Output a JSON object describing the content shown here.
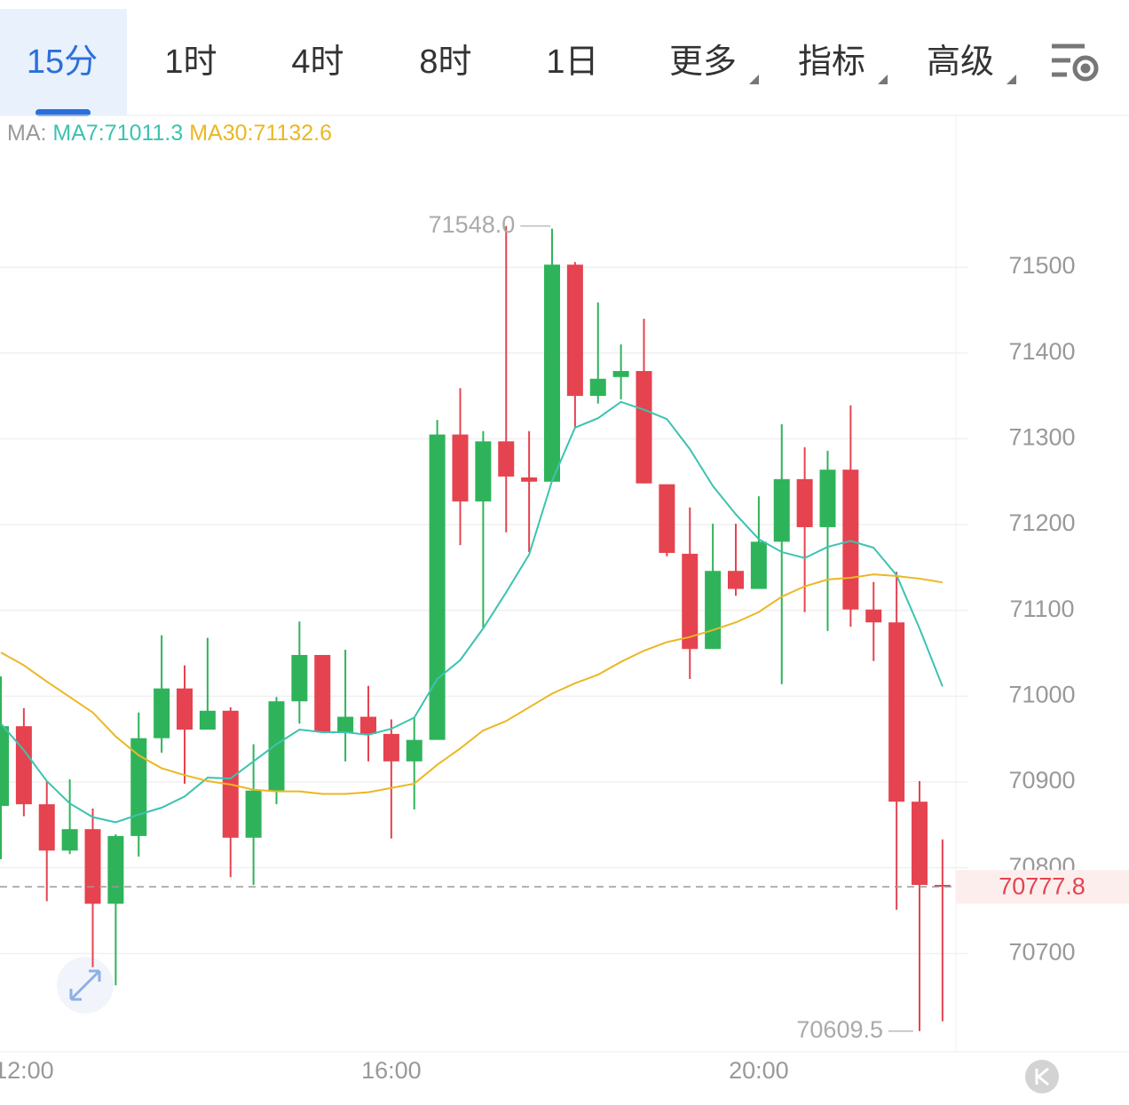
{
  "tabs": [
    "15分",
    "1时",
    "4时",
    "8时",
    "1日",
    "更多",
    "指标",
    "高级"
  ],
  "chart_data": {
    "type": "candlestick",
    "ma_title": "MA:",
    "categories": [
      null,
      "12:00",
      null,
      null,
      null,
      null,
      null,
      null,
      null,
      null,
      null,
      null,
      null,
      null,
      null,
      null,
      null,
      "16:00",
      null,
      null,
      null,
      null,
      null,
      null,
      null,
      null,
      null,
      null,
      null,
      null,
      null,
      null,
      null,
      "20:00",
      null,
      null,
      null,
      null,
      null,
      null,
      null,
      null
    ],
    "open": [
      70872,
      70965,
      70874,
      70820,
      70845,
      70758,
      70837,
      70951,
      71009,
      70961,
      70983,
      70835,
      70890,
      70994,
      71048,
      70958,
      70976,
      70956,
      70924,
      70949,
      71305,
      71227,
      71297,
      71255,
      71250,
      71503,
      71350,
      71372,
      71379,
      71247,
      71166,
      71055,
      71146,
      71125,
      71180,
      71253,
      71197,
      71264,
      71101,
      71086,
      70877,
      70780
    ],
    "high": [
      71023,
      70986,
      70901,
      70903,
      70869,
      70839,
      70981,
      71071,
      71036,
      71068,
      70987,
      70944,
      70999,
      71087,
      71048,
      71054,
      71012,
      70973,
      70975,
      71322,
      71359,
      71309,
      71548,
      71309,
      71545,
      71506,
      71459,
      71410,
      71440,
      71247,
      71220,
      71201,
      71201,
      71233,
      71317,
      71290,
      71286,
      71339,
      71133,
      71145,
      70901,
      70833
    ],
    "low": [
      70810,
      70860,
      70761,
      70816,
      70684,
      70663,
      70813,
      70934,
      70898,
      70961,
      70789,
      70780,
      70874,
      70968,
      70958,
      70924,
      70924,
      70834,
      70868,
      70949,
      71176,
      71080,
      71191,
      71168,
      71250,
      71312,
      71341,
      71346,
      71248,
      71163,
      71020,
      71055,
      71117,
      71125,
      71014,
      71098,
      71076,
      71081,
      71041,
      70751,
      70609.5,
      70621
    ],
    "close": [
      70965,
      70874,
      70820,
      70845,
      70758,
      70837,
      70951,
      71009,
      70961,
      70983,
      70835,
      70890,
      70994,
      71048,
      70958,
      70976,
      70956,
      70924,
      70949,
      71305,
      71227,
      71297,
      71256,
      71250,
      71503,
      71350,
      71370,
      71379,
      71248,
      71167,
      71055,
      71146,
      71125,
      71180,
      71253,
      71197,
      71264,
      71101,
      71086,
      70877,
      70780,
      70777.8
    ],
    "up_color": "#2fb35a",
    "down_color": "#e5434f",
    "series": [
      {
        "name": "MA7",
        "label": "MA7:71011.3",
        "color": "#3cc3b0",
        "values": [
          70968,
          70937,
          70901,
          70875,
          70859,
          70853,
          70862,
          70870,
          70883,
          70905,
          70904,
          70924,
          70944,
          70961,
          70958,
          70958,
          70955,
          70962,
          70975,
          71020,
          71042,
          71079,
          71121,
          71165,
          71251,
          71313,
          71324,
          71343,
          71334,
          71323,
          71288,
          71245,
          71212,
          71183,
          71168,
          71161,
          71174,
          71181,
          71173,
          71141,
          71079,
          71011.3
        ]
      },
      {
        "name": "MA30",
        "label": "MA30:71132.6",
        "color": "#ebb724",
        "values": [
          71051,
          71036,
          71017,
          70999,
          70981,
          70953,
          70931,
          70916,
          70908,
          70901,
          70897,
          70891,
          70889,
          70889,
          70886,
          70886,
          70888,
          70893,
          70898,
          70920,
          70939,
          70960,
          70971,
          70987,
          71003,
          71015,
          71025,
          71040,
          71053,
          71063,
          71069,
          71077,
          71086,
          71098,
          71116,
          71128,
          71136,
          71138,
          71142,
          71140,
          71137,
          71132.6
        ]
      }
    ],
    "high_label": {
      "value": 71548,
      "label": "71548.0"
    },
    "low_label": 70609.5,
    "last_price": 70777.8,
    "ylim": [
      70585.5,
      71677
    ],
    "yticks": [
      70700,
      70800,
      70900,
      71000,
      71100,
      71200,
      71300,
      71400,
      71500
    ],
    "grid": true
  }
}
